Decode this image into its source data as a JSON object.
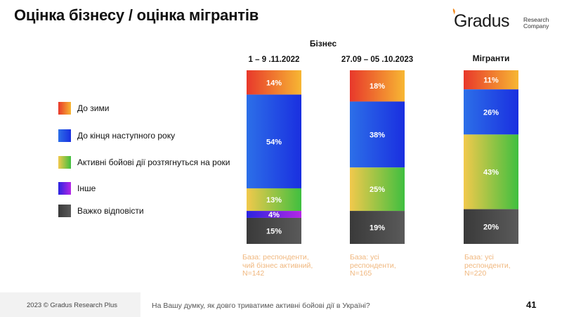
{
  "title": "Оцінка бізнесу / оцінка мігрантів",
  "logo": {
    "word": "Gradus",
    "sub_line1": "Research",
    "sub_line2": "Company"
  },
  "group_labels": {
    "business": "Бізнес",
    "migrants": "Мігранти"
  },
  "legend": [
    {
      "label": "До зими",
      "color_from": "#e8382b",
      "color_to": "#f7b733"
    },
    {
      "label": "До кінця наступного року",
      "color_from": "#2c6fe8",
      "color_to": "#1a2fe0"
    },
    {
      "label": "Активні бойові дії розтягнуться на роки",
      "color_from": "#f2c94c",
      "color_to": "#3fbf3f"
    },
    {
      "label": "Інше",
      "color_from": "#2a24e0",
      "color_to": "#b526e6"
    },
    {
      "label": "Важко відповісти",
      "color_from": "#3a3a3a",
      "color_to": "#5a5a5a"
    }
  ],
  "chart_data": {
    "type": "bar",
    "stacked": true,
    "normalized": true,
    "categories": [
      "1 – 9 .11.2022",
      "27.09 – 05 .10.2023",
      "Мігранти"
    ],
    "series": [
      {
        "name": "До зими",
        "values": [
          14,
          18,
          11
        ],
        "color_from": "#e8382b",
        "color_to": "#f7b733"
      },
      {
        "name": "До кінця наступного року",
        "values": [
          54,
          38,
          26
        ],
        "color_from": "#2c6fe8",
        "color_to": "#1a2fe0"
      },
      {
        "name": "Активні бойові дії розтягнуться на роки",
        "values": [
          13,
          25,
          43
        ],
        "color_from": "#f2c94c",
        "color_to": "#3fbf3f"
      },
      {
        "name": "Інше",
        "values": [
          4,
          0,
          0
        ],
        "color_from": "#2a24e0",
        "color_to": "#b526e6"
      },
      {
        "name": "Важко відповісти",
        "values": [
          15,
          19,
          20
        ],
        "color_from": "#3a3a3a",
        "color_to": "#5a5a5a"
      }
    ],
    "value_suffix": "%"
  },
  "bases": [
    "База: респонденти, чий бізнес активний, N=142",
    "База: усі респонденти, N=165",
    "База: усі респонденти, N=220"
  ],
  "footer": {
    "copyright": "2023 © Gradus Research Plus",
    "question": "На Вашу думку, як довго триватиме активні бойові дії в Україні?",
    "page_number": "41"
  }
}
